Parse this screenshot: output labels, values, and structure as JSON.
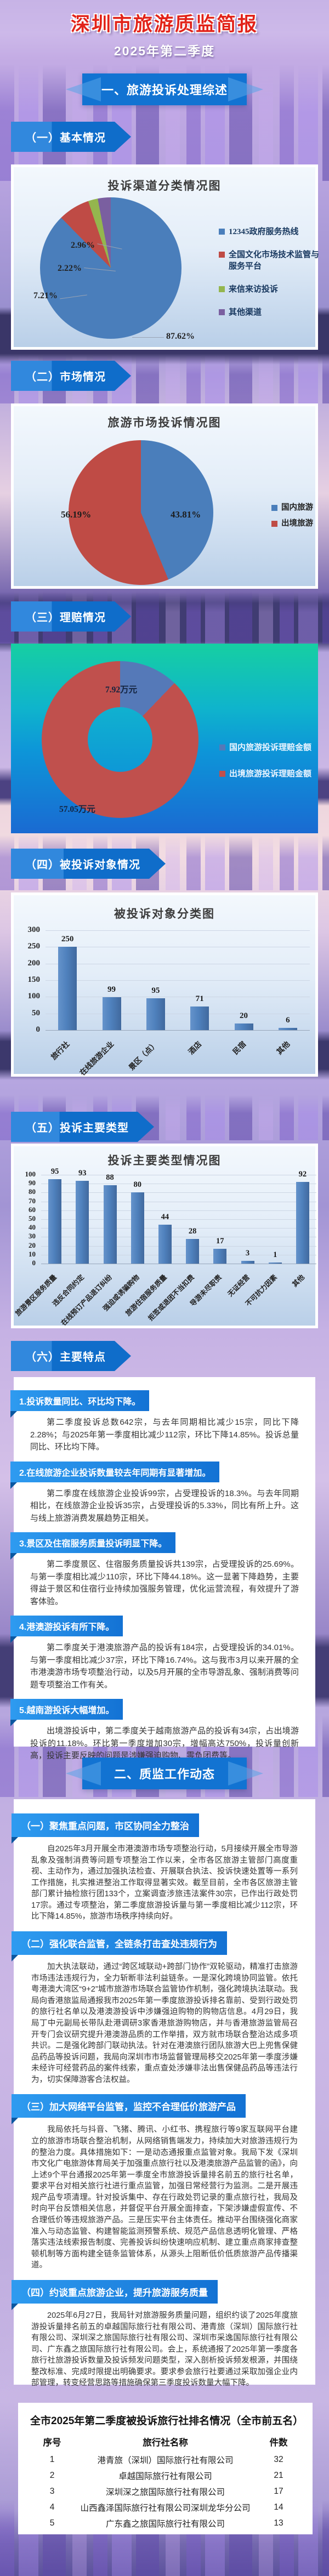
{
  "header": {
    "title": "深圳市旅游质监简报",
    "subtitle": "2025年第二季度"
  },
  "palette": {
    "banner_blue": "#1273d2",
    "ribbon_blue": "#2e9bf0",
    "title_red": "#e2231a",
    "bar_blue": "#4f81bd"
  },
  "part_banners": {
    "part1": "一、旅游投诉处理综述",
    "part2": "二、质监工作动态"
  },
  "section_banners": {
    "s1": "（一）基本情况",
    "s2": "（二）市场情况",
    "s3": "（三）理赔情况",
    "s4": "（四）被投诉对象情况",
    "s5": "（五）投诉主要类型",
    "s6": "（六）主要特点"
  },
  "chart_data": [
    {
      "id": "complaint-channels",
      "type": "pie",
      "title": "投诉渠道分类情况图",
      "labels": [
        "12345政府服务热线",
        "全国文化市场技术监管与服务平台",
        "来信来访投诉",
        "其他渠道"
      ],
      "values": [
        87.62,
        7.21,
        2.22,
        2.96
      ],
      "unit": "%",
      "data_labels": [
        "87.62%",
        "7.21%",
        "2.22%",
        "2.96%"
      ],
      "colors": [
        "#4a7ebb",
        "#bf4b45",
        "#94b64e",
        "#7a5fa0"
      ],
      "legend_position": "right"
    },
    {
      "id": "market-complaints",
      "type": "pie",
      "title": "旅游市场投诉情况图",
      "labels": [
        "国内旅游",
        "出境旅游"
      ],
      "values": [
        43.81,
        56.19
      ],
      "unit": "%",
      "data_labels": [
        "43.81%",
        "56.19%"
      ],
      "colors": [
        "#4a7ebb",
        "#bf4b45"
      ],
      "legend_position": "right"
    },
    {
      "id": "claim-amounts",
      "type": "donut",
      "title": "",
      "labels": [
        "国内旅游投诉理赔金额",
        "出境旅游投诉理赔金额"
      ],
      "values": [
        7.92,
        57.05
      ],
      "unit": "万元",
      "data_labels": [
        "7.92万元",
        "57.05万元"
      ],
      "colors": [
        "#5579b8",
        "#c0504d"
      ],
      "legend_position": "right"
    },
    {
      "id": "complained-objects",
      "type": "bar",
      "title": "被投诉对象分类图",
      "categories": [
        "旅行社",
        "在线旅游企业",
        "景区（点）",
        "酒店",
        "民宿",
        "其他"
      ],
      "values": [
        250,
        99,
        95,
        71,
        20,
        6
      ],
      "ylim": [
        0,
        300
      ],
      "yticks": [
        0,
        50,
        100,
        150,
        200,
        250,
        300
      ],
      "xlabel": "",
      "ylabel": "",
      "grid": true,
      "bar_color": "#4f81bd"
    },
    {
      "id": "complaint-types",
      "type": "bar",
      "title": "投诉主要类型情况图",
      "categories": [
        "旅游景区服务质量",
        "违反合同约定",
        "在线预订产品退订纠纷",
        "强迫或诱骗购物",
        "旅游住宿服务质量",
        "拒签或退团不当扣费",
        "导游未尽职责",
        "无证经营",
        "不可抗力因素",
        "其他"
      ],
      "values": [
        95,
        93,
        88,
        80,
        44,
        28,
        17,
        3,
        1,
        92
      ],
      "ylim": [
        0,
        100
      ],
      "yticks": [
        0,
        10,
        20,
        30,
        40,
        50,
        60,
        70,
        80,
        90,
        100
      ],
      "xlabel": "",
      "ylabel": "",
      "grid": true,
      "bar_color": "#4f81bd"
    }
  ],
  "features": {
    "items": [
      {
        "label": "1.投诉数量同比、环比均下降。",
        "text": "第二季度投诉总数642宗，与去年同期相比减少15宗，同比下降2.28%；与2025年第一季度相比减少112宗，环比下降14.85%。投诉总量同比、环比均下降。"
      },
      {
        "label": "2.在线旅游企业投诉数量较去年同期有显著增加。",
        "text": "第二季度在线旅游企业投诉99宗，占受理投诉的18.3%。与去年同期相比，在线旅游企业投诉35宗，占受理投诉的5.33%，同比有所上升。这与线上旅游消费发展趋势正相关。"
      },
      {
        "label": "3.景区及住宿服务质量投诉明显下降。",
        "text": "第二季度景区、住宿服务质量投诉共139宗，占受理投诉的25.69%。与第一季度相比减少110宗，环比下降44.18%。这一显著下降趋势，主要得益于景区和住宿行业持续加强服务管理，优化运营流程，有效提升了游客体验。"
      },
      {
        "label": "4.港澳游投诉有所下降。",
        "text": "第二季度关于港澳旅游产品的投诉有184宗，占受理投诉的34.01%。与第一季度相比减少37宗，环比下降16.74%。这与我市3月以来开展的全市港澳游市场专项整治行动，以及5月开展的全市导游乱象、强制消费等问题专项整治工作有关。"
      },
      {
        "label": "5.越南游投诉大幅增加。",
        "text": "出境游投诉中，第二季度关于越南旅游产品的投诉有34宗，占出境游投诉的11.18%。环比第一季度增加30宗，增幅高达750%，投诉量创新高，投诉主要反映的问题是涉嫌强迫购物、零负团费等。"
      }
    ]
  },
  "dynamics": {
    "items": [
      {
        "label": "（一）聚焦重点问题，市区协同全力整治",
        "text": "自2025年3月开展全市港澳游市场专项整治行动，5月接续开展全市导游乱象及强制消费等问题专项整治工作以来，全市各区旅游主管部门高度重视、主动作为，通过加强执法检查、开展联合执法、投诉快速处置等一系列工作措施，扎实推进整治工作取得显著实效。截至目前，全市各区旅游主管部门累计抽检旅行团133个，立案调查涉旅违法案件30宗，已作出行政处罚17宗。通过专项整治，第二季度旅游投诉量与第一季度相比减少112宗，环比下降14.85%，旅游市场秩序持续向好。"
      },
      {
        "label": "（二）强化联合监管，全链条打击查处违规行为",
        "text": "加大执法联动，通过“跨区域联动+跨部门协作”双轮驱动，精准打击旅游市场违法违规行为，全力斩断非法利益链条。一是深化跨境协同监管。依托粤港澳大湾区“9+2”城市旅游市场联合监管协作机制，强化跨境执法联动。我局向香港旅监局通报我市2025年第一季度旅游投诉排名靠前、受到行政处罚的旅行社名单以及港澳游投诉中涉嫌强迫购物的购物店信息。4月29日，我局丁中元副局长带队赴港调研3家香港旅游购物店，并与香港旅游监管局召开专门会议研究提升港澳游品质的工作举措，双方就市场联合整治达成多项共识。二是强化跨部门联动执法。针对在港澳旅行团队旅游大巴上兜售保健品药品等投诉问题，我局向深圳市市场监督管理局移交2025年第一季度涉嫌未经许可经营药品的案件线索，重点查处涉嫌非法出售保健品药品等违法行为，切实保障游客合法权益。"
      },
      {
        "label": "（三）加大网络平台监管，监控不合理低价旅游产品",
        "text": "我局依托与抖音、飞猪、腾讯、小红书、携程旅行等9家互联网平台建立的旅游市场联合整治机制，从网络销售端发力，持续加大对旅游违规行为的整治力度。具体措施如下：一是动态通报重点监管对象。我局下发《深圳市文化广电旅游体育局关于加强重点旅行社以及港澳旅游产品监管的函》，向上述9个平台通报2025年第一季度全市旅游投诉量排名前五的旅行社名单，要求平台对相关旅行社进行重点监管，加强日常经营行为监测。二是开展违规产品专项清理。针对投诉集中、存在行政处罚记录的重点旅行社，我局及时向平台反馈相关信息，并督促平台开展全面排查，下架涉嫌虚假宣传、不合理低价等违规旅游产品。三是压实平台主体责任。推动平台围绕强化商家准入与动态监管、构建智能监测预警系统、规范产品信息透明化管理、严格落实违法线索报告制度、完善投诉纠纷快速响应机制、建立重点商家排查整顿机制等方面构建全链条监管体系，从源头上阻断低价低质旅游产品传播渠道。"
      },
      {
        "label": "（四）约谈重点旅游企业，提升旅游服务质量",
        "text": "2025年6月27日，我局针对旅游服务质量问题，组织约谈了2025年度旅游投诉量排名前五的卓越国际旅行社有限公司、港青旅（深圳）国际旅行社有限公司、深圳深之旅国际旅行社有限公司、深圳市采逸国际旅行社有限公司、广东鑫之旅国际旅行社有限公司。会上，系统通报了2025年第一季度各旅行社旅游投诉数量及投诉频发问题类型，深入剖析投诉频发根源，并围绕整改标准、完成时限提出明确要求。要求参会旅行社要通过采取加强企业内部管理，转变经营思路等措施确保第三季度投诉数量大幅下降。"
      }
    ]
  },
  "ranking_table": {
    "title": "全市2025年第二季度被投诉旅行社排名情况（全市前五名）",
    "headers": [
      "序号",
      "旅行社名称",
      "件数"
    ],
    "rows": [
      [
        "1",
        "港青旅（深圳）国际旅行社有限公司",
        "32"
      ],
      [
        "2",
        "卓越国际旅行社有限公司",
        "21"
      ],
      [
        "3",
        "深圳深之旅国际旅行社有限公司",
        "17"
      ],
      [
        "4",
        "山西鑫泽国际旅行社有限公司深圳龙华分公司",
        "14"
      ],
      [
        "5",
        "广东鑫之旅国际旅行社有限公司",
        "13"
      ]
    ]
  }
}
